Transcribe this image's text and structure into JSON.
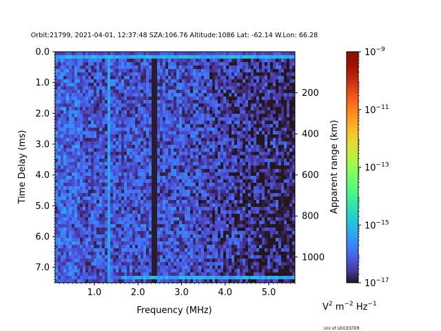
{
  "chart_data": {
    "type": "heatmap",
    "title": "Orbit:21799, 2021-04-01, 12:37:48 SZA:106.76 Altitude:1086 Lat: -62.14 W.Lon: 66.28",
    "xlabel": "Frequency (MHz)",
    "ylabel": "Time Delay (ms)",
    "y2label": "Apparent range (km)",
    "xlim": [
      0.1,
      5.6
    ],
    "ylim": [
      7.5,
      0.0
    ],
    "y2lim": [
      0,
      1125
    ],
    "x_ticks": [
      1.0,
      2.0,
      3.0,
      4.0,
      5.0
    ],
    "x_tick_labels": [
      "1.0",
      "2.0",
      "3.0",
      "4.0",
      "5.0"
    ],
    "y_ticks": [
      0.0,
      1.0,
      2.0,
      3.0,
      4.0,
      5.0,
      6.0,
      7.0
    ],
    "y_tick_labels": [
      "0.0",
      "1.0",
      "2.0",
      "3.0",
      "4.0",
      "5.0",
      "6.0",
      "7.0"
    ],
    "y2_ticks": [
      200,
      400,
      600,
      800,
      1000
    ],
    "y2_tick_labels": [
      "200",
      "400",
      "600",
      "800",
      "1000"
    ],
    "colorbar": {
      "colormap": "turbo",
      "scale": "log",
      "range_exp": [
        -17,
        -9
      ],
      "tick_exps": [
        -9,
        -11,
        -13,
        -15,
        -17
      ],
      "unit": "V² m⁻² Hz⁻¹"
    },
    "features": {
      "bright_row_delay_ms": 0.2,
      "bright_row_bottom_delay_ms": 7.35,
      "dark_column_mhz": 2.37,
      "bright_column_mhz": 1.32,
      "background_exp_range": [
        -17,
        -15.2
      ]
    }
  },
  "labels": {
    "cbar_unit_base": "V",
    "cbar_unit_rest": " m",
    "cbar_unit_hz": " Hz",
    "exp_2": "2",
    "exp_m2": "−2",
    "exp_m1": "−1",
    "credit": "Uni of LEICESTER"
  }
}
